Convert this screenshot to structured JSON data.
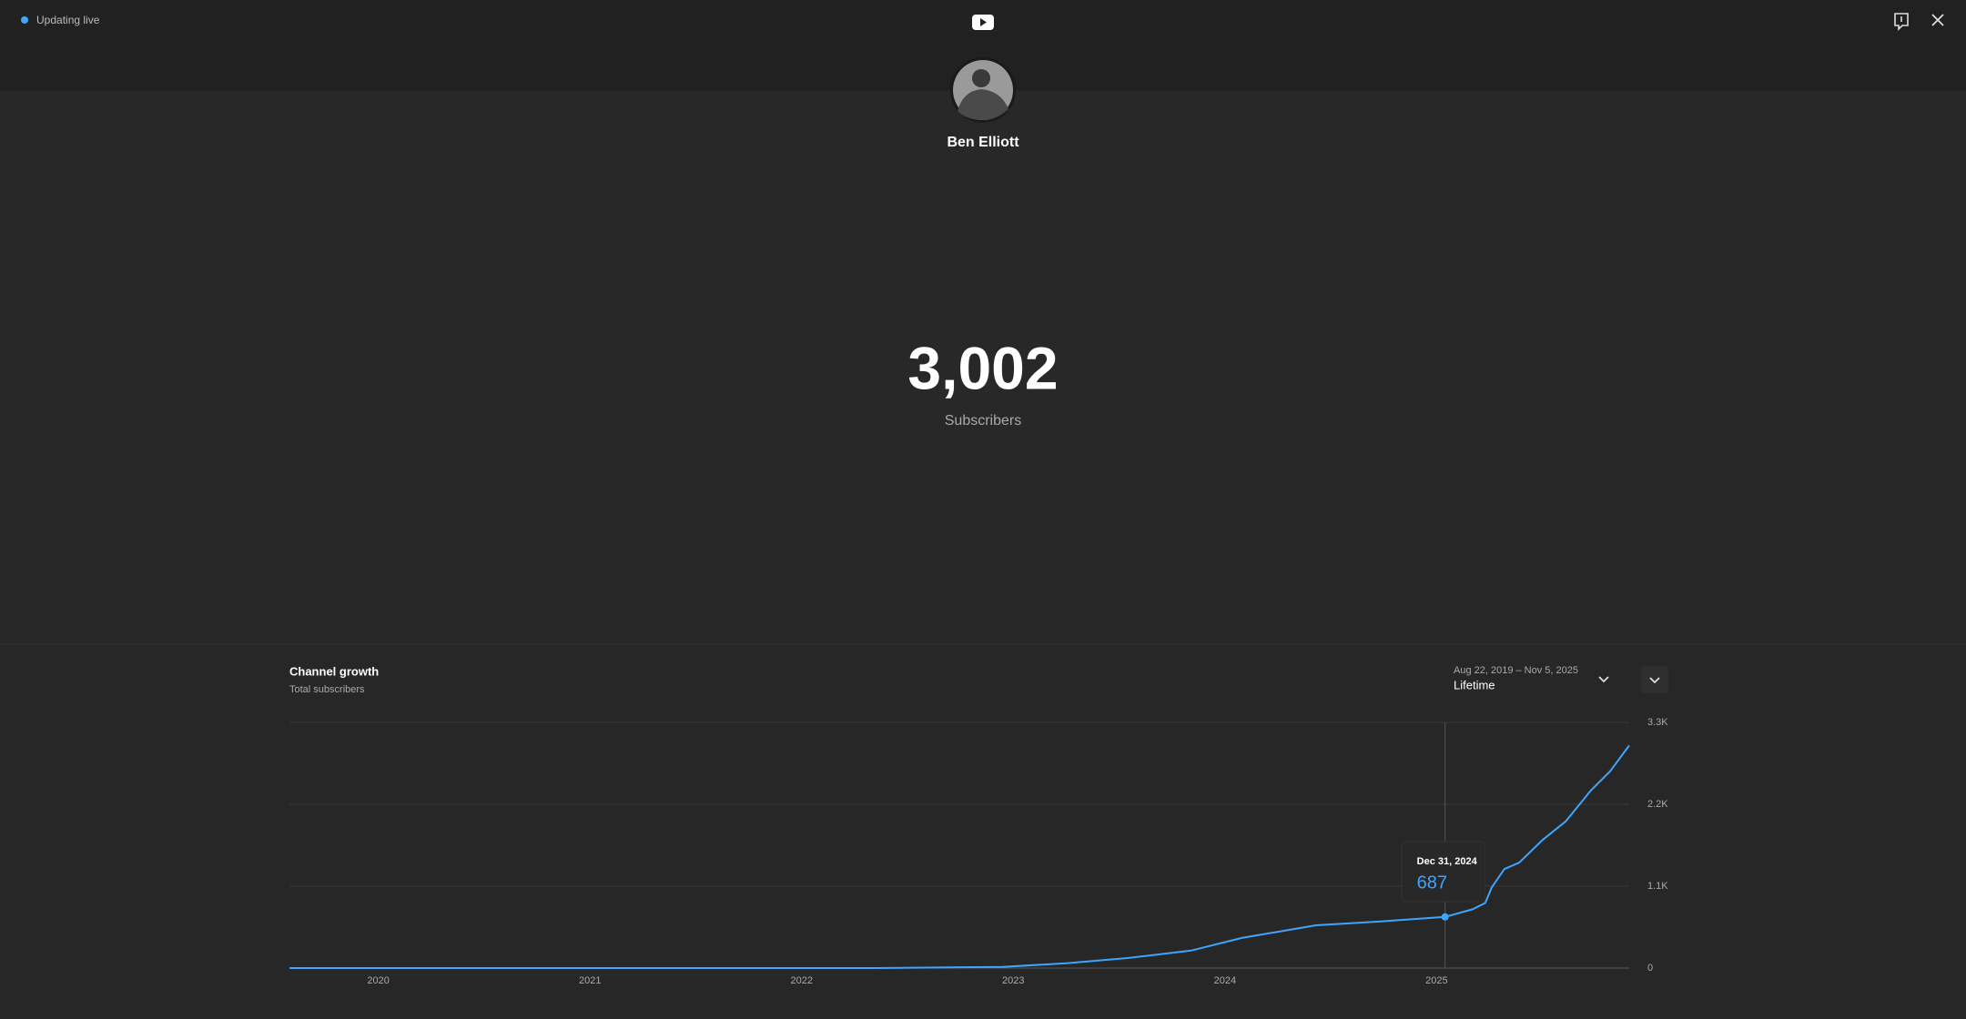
{
  "header": {
    "status": "Updating live"
  },
  "profile": {
    "name": "Ben Elliott"
  },
  "counter": {
    "value": "3,002",
    "label": "Subscribers"
  },
  "panel": {
    "title": "Channel growth",
    "subtitle": "Total subscribers",
    "date_range": "Aug 22, 2019 – Nov 5, 2025",
    "period": "Lifetime"
  },
  "chart_data": {
    "type": "line",
    "x": [
      2019.58,
      2022.36,
      2022.95,
      2023.25,
      2023.54,
      2023.84,
      2024.08,
      2024.43,
      2024.73,
      2025.04,
      2025.17,
      2025.23,
      2025.26,
      2025.32,
      2025.39,
      2025.5,
      2025.61,
      2025.73,
      2025.82,
      2025.91
    ],
    "values": [
      0,
      0,
      15,
      65,
      135,
      235,
      405,
      575,
      625,
      687,
      790,
      875,
      1080,
      1330,
      1415,
      1720,
      1970,
      2390,
      2645,
      2990
    ],
    "color": "#3ea6ff",
    "xlim": [
      2019.58,
      2025.91
    ],
    "xticks": [
      2020,
      2021,
      2022,
      2023,
      2024,
      2025
    ],
    "ylim": [
      0,
      3300
    ],
    "yticks": [
      0,
      {
        "value": 1100,
        "label": "1.1K"
      },
      {
        "value": 2200,
        "label": "2.2K"
      },
      {
        "value": 3300,
        "label": "3.3K"
      }
    ],
    "grid": true,
    "tooltip": {
      "x": 2025.04,
      "label": "Dec 31, 2024",
      "value": 687
    }
  }
}
